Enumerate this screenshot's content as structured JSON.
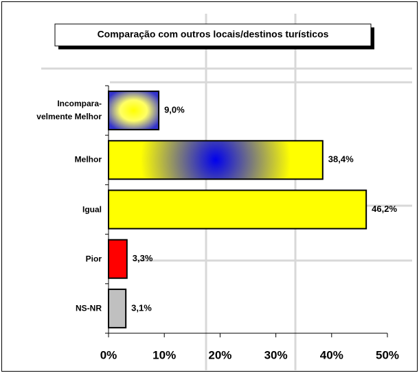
{
  "chart_data": {
    "type": "bar",
    "orientation": "horizontal",
    "title": "Comparação com outros locais/destinos turísticos",
    "categories": [
      "Incompara-\nvelmente Melhor",
      "Melhor",
      "Igual",
      "Pior",
      "NS-NR"
    ],
    "values": [
      9.0,
      38.4,
      46.2,
      3.3,
      3.1
    ],
    "value_labels": [
      "9,0%",
      "38,4%",
      "46,2%",
      "3,3%",
      "3,1%"
    ],
    "colors": [
      "#3333cc",
      "#ffff00",
      "#ffff00",
      "#ff0000",
      "#c0c0c0"
    ],
    "xlim": [
      0,
      50
    ],
    "xticks": [
      {
        "value": 0,
        "label": "0%"
      },
      {
        "value": 10,
        "label": "10%"
      },
      {
        "value": 20,
        "label": "20%"
      },
      {
        "value": 30,
        "label": "30%"
      },
      {
        "value": 40,
        "label": "40%"
      },
      {
        "value": 50,
        "label": "50%"
      }
    ],
    "grid": false
  }
}
